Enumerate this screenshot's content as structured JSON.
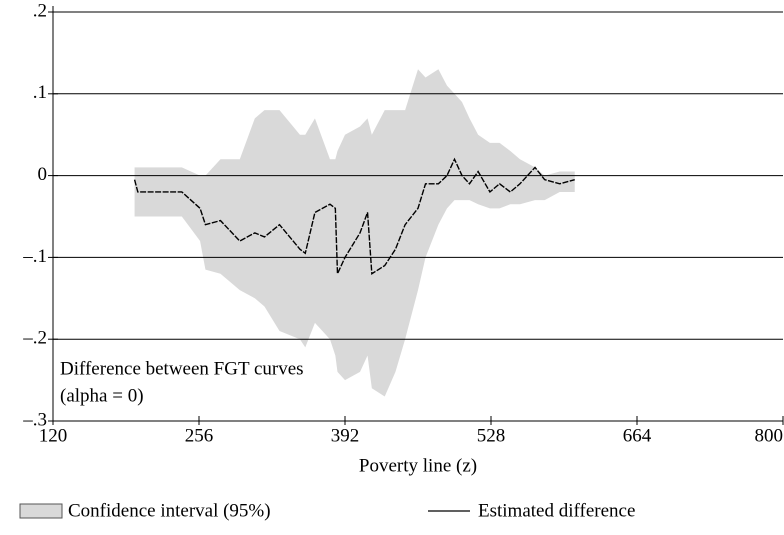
{
  "chart_data": {
    "type": "line",
    "annotation": [
      "Difference between FGT curves",
      "(alpha = 0)"
    ],
    "xlabel": "Poverty line (z)",
    "x": [
      196,
      199,
      240,
      257,
      262,
      276,
      294,
      308,
      317,
      331,
      350,
      355,
      364,
      378,
      383,
      385,
      392,
      406,
      413,
      417,
      429,
      439,
      448,
      460,
      467,
      479,
      487,
      494,
      501,
      508,
      516,
      527,
      536,
      546,
      555,
      569,
      578,
      592,
      606
    ],
    "series": [
      {
        "name": "Estimated difference",
        "color": "#000000",
        "values": [
          -0.005,
          -0.02,
          -0.02,
          -0.04,
          -0.06,
          -0.055,
          -0.08,
          -0.07,
          -0.075,
          -0.06,
          -0.09,
          -0.095,
          -0.045,
          -0.035,
          -0.04,
          -0.12,
          -0.1,
          -0.07,
          -0.045,
          -0.12,
          -0.11,
          -0.09,
          -0.06,
          -0.04,
          -0.01,
          -0.01,
          0.0,
          0.02,
          0.0,
          -0.01,
          0.005,
          -0.02,
          -0.01,
          -0.02,
          -0.01,
          0.01,
          -0.005,
          -0.01,
          -0.005
        ]
      }
    ],
    "band": {
      "name": "Confidence interval (95%)",
      "color": "#d9d9d9",
      "upper": [
        0.01,
        0.01,
        0.01,
        0.0,
        0.0,
        0.02,
        0.02,
        0.07,
        0.08,
        0.08,
        0.05,
        0.05,
        0.07,
        0.02,
        0.02,
        0.03,
        0.05,
        0.06,
        0.07,
        0.05,
        0.08,
        0.08,
        0.08,
        0.13,
        0.12,
        0.13,
        0.11,
        0.1,
        0.09,
        0.07,
        0.05,
        0.04,
        0.04,
        0.03,
        0.02,
        0.01,
        0.0,
        0.005,
        0.005
      ],
      "lower": [
        -0.05,
        -0.05,
        -0.05,
        -0.08,
        -0.115,
        -0.12,
        -0.14,
        -0.15,
        -0.16,
        -0.19,
        -0.2,
        -0.21,
        -0.18,
        -0.2,
        -0.22,
        -0.24,
        -0.25,
        -0.24,
        -0.22,
        -0.26,
        -0.27,
        -0.24,
        -0.2,
        -0.14,
        -0.1,
        -0.06,
        -0.04,
        -0.03,
        -0.03,
        -0.03,
        -0.035,
        -0.04,
        -0.04,
        -0.035,
        -0.035,
        -0.03,
        -0.03,
        -0.02,
        -0.02
      ]
    },
    "xlim": [
      120,
      800
    ],
    "xticks": [
      120,
      256,
      392,
      528,
      664,
      800
    ],
    "ylim": [
      -0.3,
      0.2
    ],
    "yticks": [
      {
        "value": 0.2,
        "label": ".2"
      },
      {
        "value": 0.1,
        "label": ".1"
      },
      0,
      {
        "value": -0.1,
        "label": "–.1"
      },
      {
        "value": -0.2,
        "label": "–.2"
      },
      {
        "value": -0.3,
        "label": "–.3"
      }
    ],
    "grid": true
  }
}
